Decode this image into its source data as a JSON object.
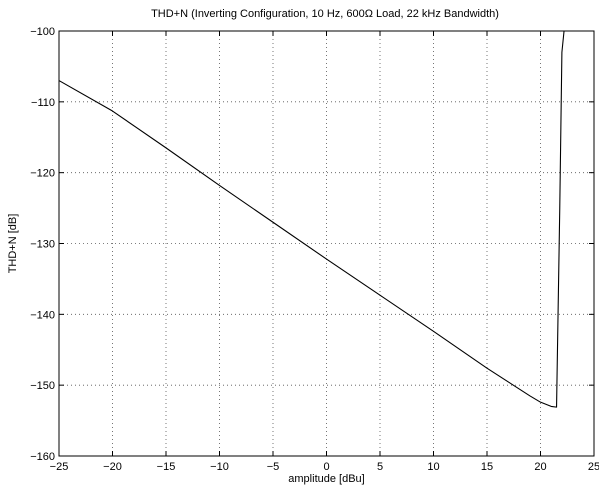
{
  "chart_data": {
    "type": "line",
    "title": "THD+N (Inverting Configuration, 10 Hz, 600Ω Load, 22 kHz Bandwidth)",
    "xlabel": "amplitude [dBu]",
    "ylabel": "THD+N [dB]",
    "xlim": [
      -25,
      25
    ],
    "ylim": [
      -160,
      -100
    ],
    "xticks": [
      -25,
      -20,
      -15,
      -10,
      -5,
      0,
      5,
      10,
      15,
      20,
      25
    ],
    "yticks": [
      -160,
      -150,
      -140,
      -130,
      -120,
      -110,
      -100
    ],
    "xtick_labels": [
      "−25",
      "−20",
      "−15",
      "−10",
      "−5",
      "0",
      "5",
      "10",
      "15",
      "20",
      "25"
    ],
    "ytick_labels": [
      "−160",
      "−150",
      "−140",
      "−130",
      "−120",
      "−110",
      "−100"
    ],
    "grid": true,
    "series": [
      {
        "color": "#000000",
        "x": [
          -25,
          -20,
          -15,
          -10,
          -5,
          0,
          5,
          10,
          15,
          19,
          20,
          21,
          21.5,
          21.8,
          22.0,
          22.2
        ],
        "y": [
          -107,
          -111.3,
          -116.5,
          -121.8,
          -127,
          -132.2,
          -137.3,
          -142.4,
          -147.6,
          -151.5,
          -152.4,
          -153,
          -153.1,
          -125,
          -103,
          -100
        ]
      }
    ]
  }
}
